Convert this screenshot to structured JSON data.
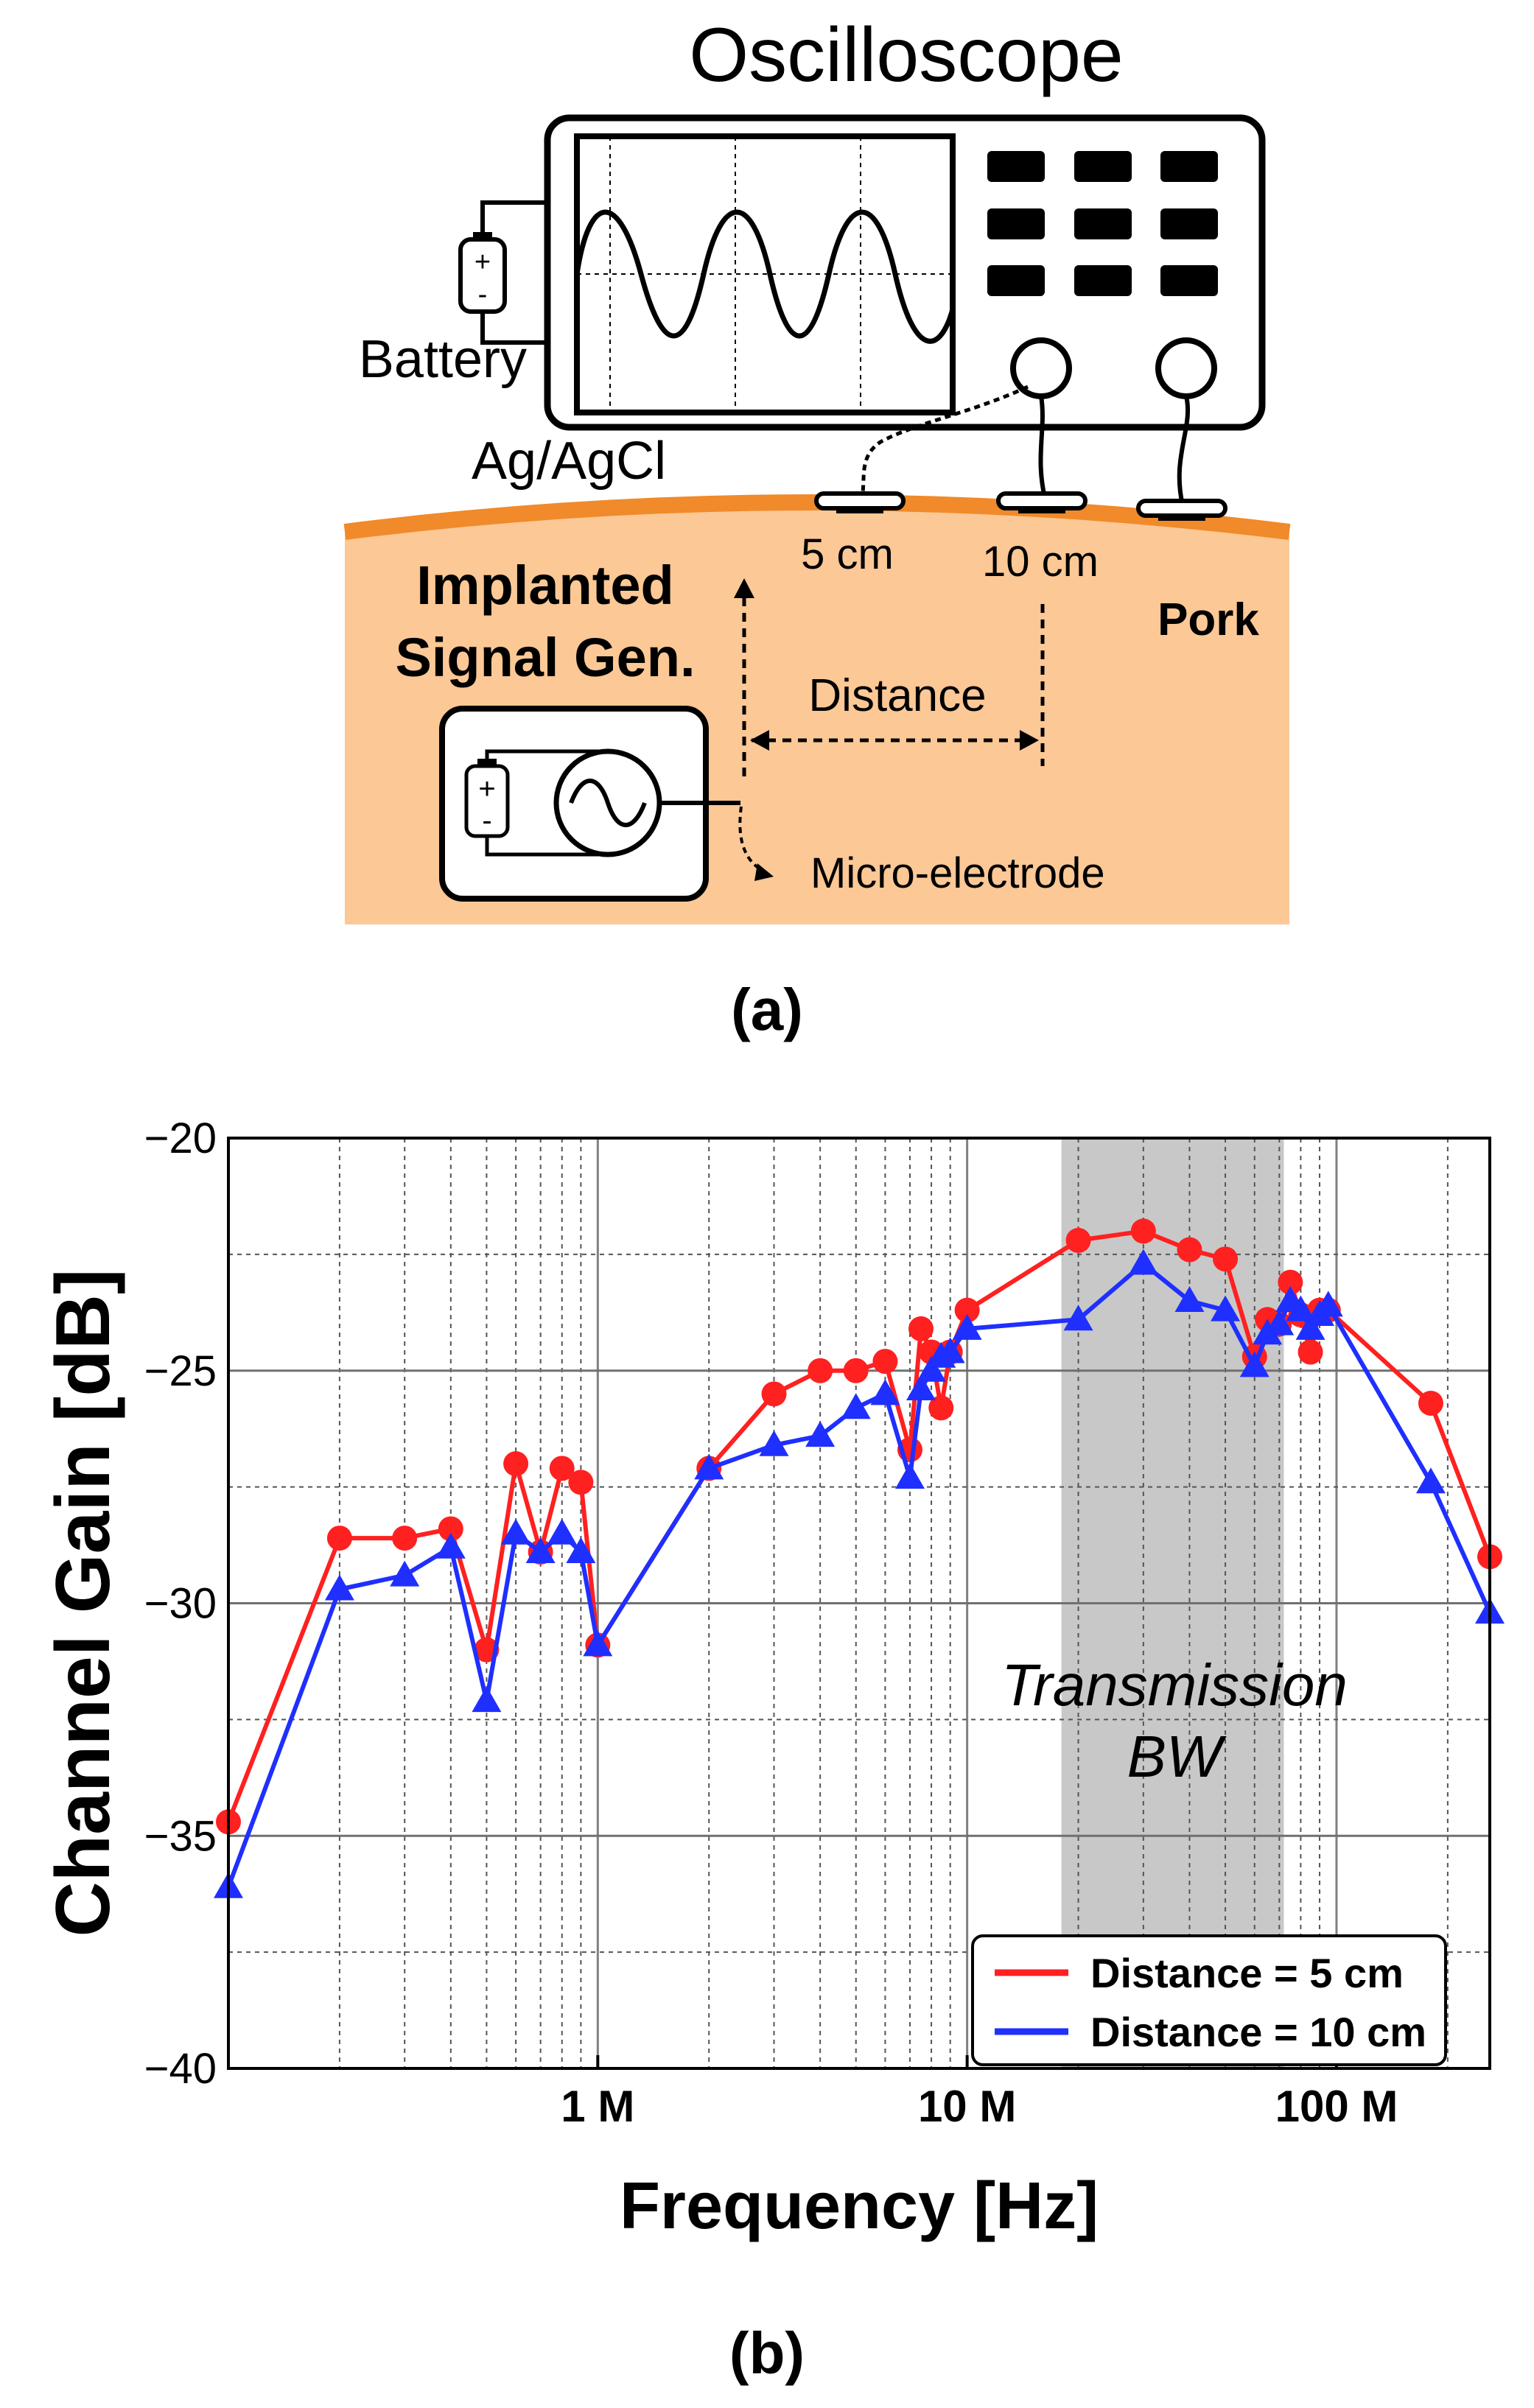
{
  "panel_a": {
    "title": "Oscilloscope",
    "battery_label": "Battery",
    "electrode_label": "Ag/AgCl",
    "distance_5": "5 cm",
    "distance_10": "10 cm",
    "tissue_label": "Pork",
    "implant_line1": "Implanted",
    "implant_line2": "Signal Gen.",
    "distance_label": "Distance",
    "micro_label": "Micro-electrode",
    "plus": "+",
    "minus": "-",
    "caption": "(a)"
  },
  "panel_b": {
    "caption": "(b)",
    "band_line1": "Transmission",
    "band_line2": "BW"
  },
  "colors": {
    "series_5cm": "#ff2020",
    "series_10cm": "#1f2fff",
    "pork": "#fbc896",
    "pork_surface": "#f08a2a",
    "band": "#c8c8c8"
  },
  "chart_data": {
    "type": "line",
    "xscale": "log",
    "xlabel": "Frequency [Hz]",
    "ylabel": "Channel Gain [dB]",
    "xlim": [
      100000,
      260000000
    ],
    "ylim": [
      -40,
      -20
    ],
    "xticks": [
      1000000,
      10000000,
      100000000
    ],
    "xtick_labels": [
      "1 M",
      "10 M",
      "100 M"
    ],
    "yticks": [
      -40,
      -35,
      -30,
      -25,
      -20
    ],
    "ytick_labels": [
      "−40",
      "−35",
      "−30",
      "−25",
      "−20"
    ],
    "grid": true,
    "legend_position": "bottom-right",
    "band": {
      "x": [
        18000000,
        72000000
      ],
      "label": "Transmission BW"
    },
    "series": [
      {
        "name": "Distance = 5 cm",
        "marker": "circle",
        "color": "#ff2020",
        "x": [
          100000,
          200000,
          300000,
          400000,
          500000,
          600000,
          700000,
          800000,
          900000,
          1000000,
          2000000,
          3000000,
          4000000,
          5000000,
          6000000,
          7000000,
          7500000,
          8000000,
          8500000,
          9000000,
          10000000,
          20000000,
          30000000,
          40000000,
          50000000,
          60000000,
          65000000,
          70000000,
          75000000,
          80000000,
          85000000,
          90000000,
          95000000,
          180000000,
          260000000
        ],
        "y": [
          -34.7,
          -28.6,
          -28.6,
          -28.4,
          -31.0,
          -27.0,
          -28.9,
          -27.1,
          -27.4,
          -30.9,
          -27.1,
          -25.5,
          -25.0,
          -25.0,
          -24.8,
          -26.7,
          -24.1,
          -24.6,
          -25.8,
          -24.6,
          -23.7,
          -22.2,
          -22.0,
          -22.4,
          -22.6,
          -24.7,
          -23.9,
          -24.0,
          -23.1,
          -23.8,
          -24.6,
          -23.7,
          -23.7,
          -25.7,
          -29.0
        ]
      },
      {
        "name": "Distance = 10 cm",
        "marker": "triangle",
        "color": "#1f2fff",
        "x": [
          100000,
          200000,
          300000,
          400000,
          500000,
          600000,
          700000,
          800000,
          900000,
          1000000,
          2000000,
          3000000,
          4000000,
          5000000,
          6000000,
          7000000,
          7500000,
          8000000,
          8500000,
          9000000,
          10000000,
          20000000,
          30000000,
          40000000,
          50000000,
          60000000,
          65000000,
          70000000,
          75000000,
          80000000,
          85000000,
          90000000,
          95000000,
          180000000,
          260000000
        ],
        "y": [
          -36.1,
          -29.7,
          -29.4,
          -28.8,
          -32.1,
          -28.5,
          -28.9,
          -28.5,
          -28.9,
          -30.9,
          -27.1,
          -26.6,
          -26.4,
          -25.8,
          -25.5,
          -27.3,
          -25.4,
          -25.0,
          -24.7,
          -24.6,
          -24.1,
          -23.9,
          -22.7,
          -23.5,
          -23.7,
          -24.9,
          -24.2,
          -24.0,
          -23.5,
          -23.7,
          -24.1,
          -23.8,
          -23.6,
          -27.4,
          -30.2
        ]
      }
    ]
  }
}
